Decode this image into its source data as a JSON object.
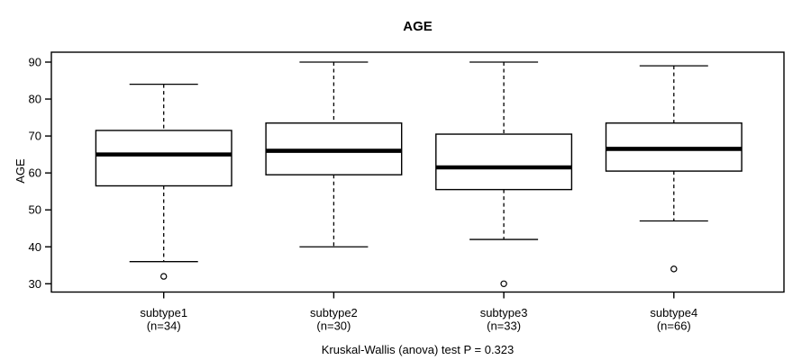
{
  "title": "AGE",
  "colors": {
    "foreground": "#000000",
    "background": "#ffffff",
    "box_fill": "#ffffff"
  },
  "chart_data": {
    "type": "boxplot",
    "title": "AGE",
    "xlabel": "",
    "ylabel": "AGE",
    "ylim": [
      27.5,
      92.5
    ],
    "y_ticks": [
      30,
      40,
      50,
      60,
      70,
      80,
      90
    ],
    "grid": false,
    "categories": [
      "subtype1",
      "subtype2",
      "subtype3",
      "subtype4"
    ],
    "category_sublabels": [
      "(n=34)",
      "(n=30)",
      "(n=33)",
      "(n=66)"
    ],
    "annotation": "Kruskal-Wallis (anova) test P = 0.323",
    "series": [
      {
        "name": "subtype1",
        "n": 34,
        "whisker_low": 36,
        "q1": 56.5,
        "median": 65,
        "q3": 71.5,
        "whisker_high": 84,
        "outliers": [
          32
        ]
      },
      {
        "name": "subtype2",
        "n": 30,
        "whisker_low": 40,
        "q1": 59.5,
        "median": 66,
        "q3": 73.5,
        "whisker_high": 90,
        "outliers": []
      },
      {
        "name": "subtype3",
        "n": 33,
        "whisker_low": 42,
        "q1": 55.5,
        "median": 61.5,
        "q3": 70.5,
        "whisker_high": 90,
        "outliers": [
          30
        ]
      },
      {
        "name": "subtype4",
        "n": 66,
        "whisker_low": 47,
        "q1": 60.5,
        "median": 66.5,
        "q3": 73.5,
        "whisker_high": 89,
        "outliers": [
          34
        ]
      }
    ]
  }
}
